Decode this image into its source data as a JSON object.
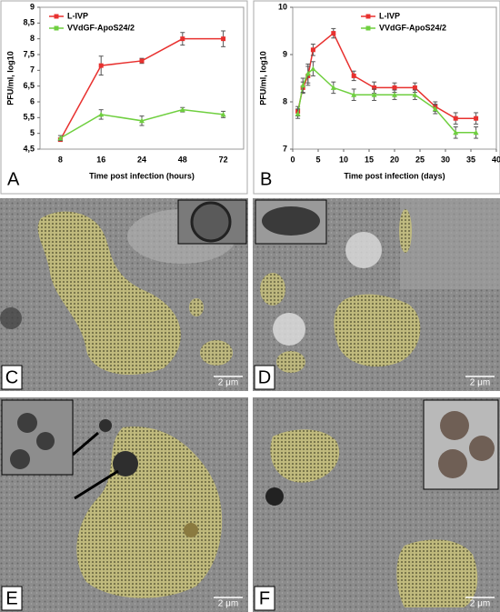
{
  "chart_data": [
    {
      "type": "line",
      "panel_label": "A",
      "xlabel": "Time post infection (hours)",
      "ylabel": "PFU/ml, log10",
      "categories": [
        "8",
        "16",
        "24",
        "48",
        "72"
      ],
      "ylim": [
        4.5,
        9
      ],
      "yticks": [
        {
          "value": 4.5,
          "label": "4,5"
        },
        5,
        {
          "value": 5.5,
          "label": "5,5"
        },
        6,
        {
          "value": 6.5,
          "label": "6,5"
        },
        7,
        {
          "value": 7.5,
          "label": "7,5"
        },
        8,
        {
          "value": 8.5,
          "label": "8,5"
        },
        9
      ],
      "legend": "upper left",
      "series": [
        {
          "name": "L-IVP",
          "color": "#e8312f",
          "marker": "square",
          "values": [
            4.8,
            7.15,
            7.3,
            8.0,
            8.0
          ],
          "errors": [
            0.05,
            0.3,
            0.08,
            0.2,
            0.25
          ]
        },
        {
          "name": "VVdGF-ApoS24/2",
          "color": "#6fcf3f",
          "marker": "triangle",
          "values": [
            4.85,
            5.6,
            5.4,
            5.75,
            5.6
          ],
          "errors": [
            0.08,
            0.15,
            0.15,
            0.07,
            0.1
          ]
        }
      ]
    },
    {
      "type": "line",
      "panel_label": "B",
      "xlabel": "Time post infection (days)",
      "ylabel": "PFU/ml, log10",
      "x": [
        1,
        2,
        3,
        4,
        8,
        12,
        16,
        20,
        24,
        28,
        32,
        36
      ],
      "xlim": [
        0,
        40
      ],
      "xticks": [
        0,
        5,
        10,
        15,
        20,
        25,
        30,
        35,
        40
      ],
      "ylim": [
        7,
        10
      ],
      "yticks": [
        7,
        8,
        9,
        10
      ],
      "legend": "upper right",
      "series": [
        {
          "name": "L-IVP",
          "color": "#e8312f",
          "marker": "square",
          "values": [
            7.8,
            8.3,
            8.55,
            9.1,
            9.45,
            8.55,
            8.3,
            8.3,
            8.3,
            7.9,
            7.65,
            7.65
          ],
          "errors": [
            0.1,
            0.12,
            0.2,
            0.12,
            0.1,
            0.1,
            0.12,
            0.1,
            0.1,
            0.1,
            0.12,
            0.12
          ]
        },
        {
          "name": "VVdGF-ApoS24/2",
          "color": "#6fcf3f",
          "marker": "triangle",
          "values": [
            7.75,
            8.35,
            8.6,
            8.7,
            8.3,
            8.15,
            8.15,
            8.15,
            8.15,
            7.85,
            7.35,
            7.35
          ],
          "errors": [
            0.1,
            0.15,
            0.2,
            0.15,
            0.12,
            0.12,
            0.12,
            0.1,
            0.1,
            0.1,
            0.12,
            0.12
          ]
        }
      ]
    }
  ],
  "micrographs": [
    {
      "label": "C",
      "scale_bar": "2 μm"
    },
    {
      "label": "D",
      "scale_bar": "2 μm"
    },
    {
      "label": "E",
      "scale_bar": "2 μm"
    },
    {
      "label": "F",
      "scale_bar": "2 μm"
    }
  ]
}
